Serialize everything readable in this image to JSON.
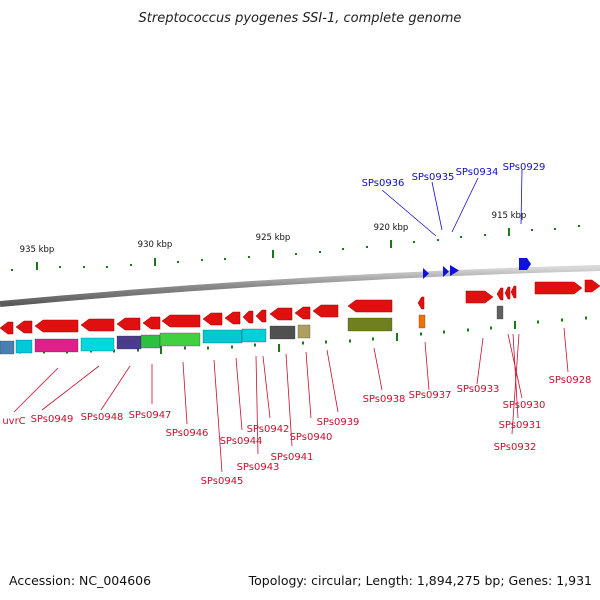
{
  "title": "Streptococcus pyogenes SSI-1, complete genome",
  "footer": {
    "accession": "Accession: NC_004606",
    "topology": "Topology: circular; Length: 1,894,275 bp; Genes: 1,931"
  },
  "colors": {
    "background": "#ffffff",
    "backbone": "#888888",
    "tick": "#1a7a1a",
    "gene_forward": "#e01010",
    "label_red": "#c8102e",
    "label_blue": "#1010c0",
    "gene_blue": "#1010dd"
  },
  "scale_labels": [
    "935 kbp",
    "930 kbp",
    "925 kbp",
    "920 kbp",
    "915 kbp"
  ],
  "red_labels": [
    "uvrC",
    "SPs0949",
    "SPs0948",
    "SPs0947",
    "SPs0946",
    "SPs0945",
    "SPs0944",
    "SPs0943",
    "SPs0942",
    "SPs0941",
    "SPs0940",
    "SPs0939",
    "SPs0938",
    "SPs0937",
    "SPs0933",
    "SPs0930",
    "SPs0931",
    "SPs0932",
    "SPs0928"
  ],
  "blue_labels": [
    "SPs0936",
    "SPs0935",
    "SPs0934",
    "SPs0929"
  ]
}
